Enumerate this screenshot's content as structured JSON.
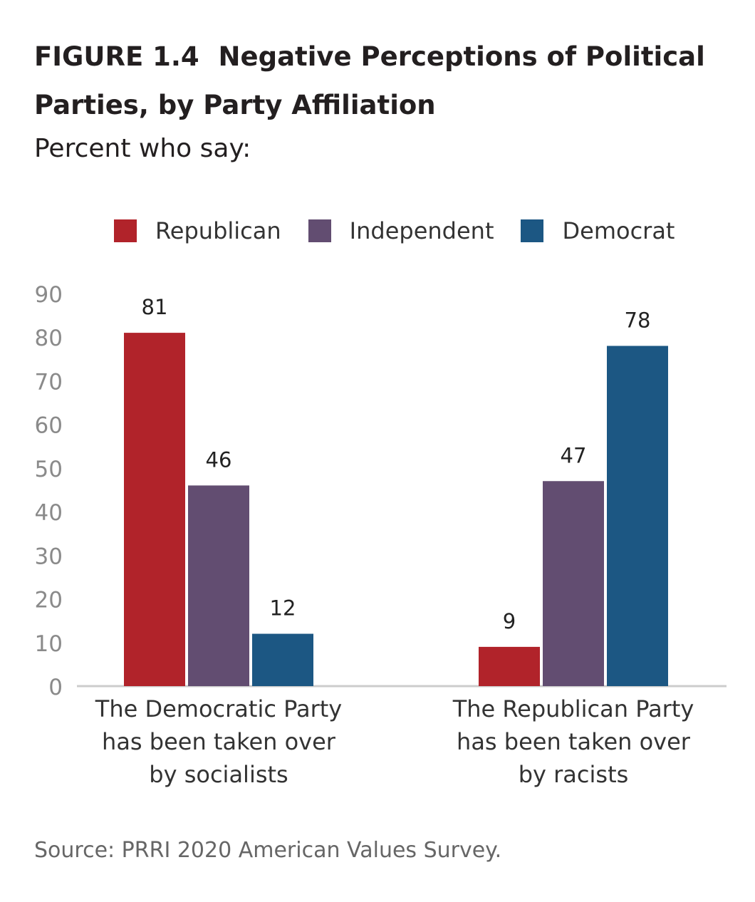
{
  "figure": {
    "number": "FIGURE 1.4",
    "title": "Negative Perceptions of Political Parties, by Party Affiliation",
    "subtitle": "Percent who say:"
  },
  "source": "Source: PRRI 2020 American Values Survey.",
  "chart_data": {
    "type": "bar",
    "categories": [
      [
        "The Democratic Party",
        "has been taken over",
        "by socialists"
      ],
      [
        "The Republican Party",
        "has been taken over",
        "by racists"
      ]
    ],
    "series": [
      {
        "name": "Republican",
        "color": "#b1232a",
        "values": [
          81,
          9
        ]
      },
      {
        "name": "Independent",
        "color": "#624d71",
        "values": [
          46,
          47
        ]
      },
      {
        "name": "Democrat",
        "color": "#1c5783",
        "values": [
          12,
          78
        ]
      }
    ],
    "ylim": [
      0,
      90
    ],
    "yticks": [
      0,
      10,
      20,
      30,
      40,
      50,
      60,
      70,
      80,
      90
    ],
    "data_labels": true,
    "legend": "top",
    "grid": false,
    "colors": {
      "axis_line": "#cccccc",
      "tick_text": "#8a8a8a",
      "label_text": "#222222"
    }
  }
}
